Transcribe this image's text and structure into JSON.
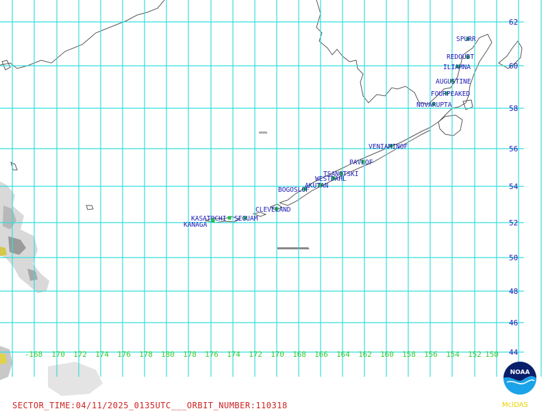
{
  "sector_time_text": "SECTOR_TIME:04/11/2025_0135UTC___ORBIT_NUMBER:110318",
  "logo_text": "NOAA",
  "software_text": "McIDAS",
  "colors": {
    "grid": "#33dddd",
    "coastline": "#555555",
    "volcano_label": "#1a1ab8",
    "volcano_marker": "#22bb44",
    "lat_label": "#1a1ab8",
    "lon_label": "#33cc33",
    "footer": "#cc2222",
    "mcidas": "#e8d400"
  },
  "lat_labels": [
    "62",
    "60",
    "58",
    "56",
    "54",
    "52",
    "50",
    "48",
    "46",
    "44"
  ],
  "lon_labels": [
    "-168",
    "170",
    "172",
    "174",
    "176",
    "178",
    "180",
    "178",
    "176",
    "174",
    "172",
    "170",
    "168",
    "166",
    "164",
    "162",
    "160",
    "158",
    "156",
    "154",
    "152",
    "150"
  ],
  "volcanoes": [
    {
      "name": "SPURR"
    },
    {
      "name": "REDOUBT"
    },
    {
      "name": "ILIAMNA"
    },
    {
      "name": "AUGUSTINE"
    },
    {
      "name": "FOURPEAKED"
    },
    {
      "name": "NOVARUPTA"
    },
    {
      "name": "VENIAMINOF"
    },
    {
      "name": "PAVLOF"
    },
    {
      "name": "TSANOTSKI"
    },
    {
      "name": "WESTDAHL"
    },
    {
      "name": "AKUTAN"
    },
    {
      "name": "BOGOSLOF"
    },
    {
      "name": "CLEVELAND"
    },
    {
      "name": "SEGUAM"
    },
    {
      "name": "KASATOCHI"
    },
    {
      "name": "KANAGA"
    }
  ]
}
